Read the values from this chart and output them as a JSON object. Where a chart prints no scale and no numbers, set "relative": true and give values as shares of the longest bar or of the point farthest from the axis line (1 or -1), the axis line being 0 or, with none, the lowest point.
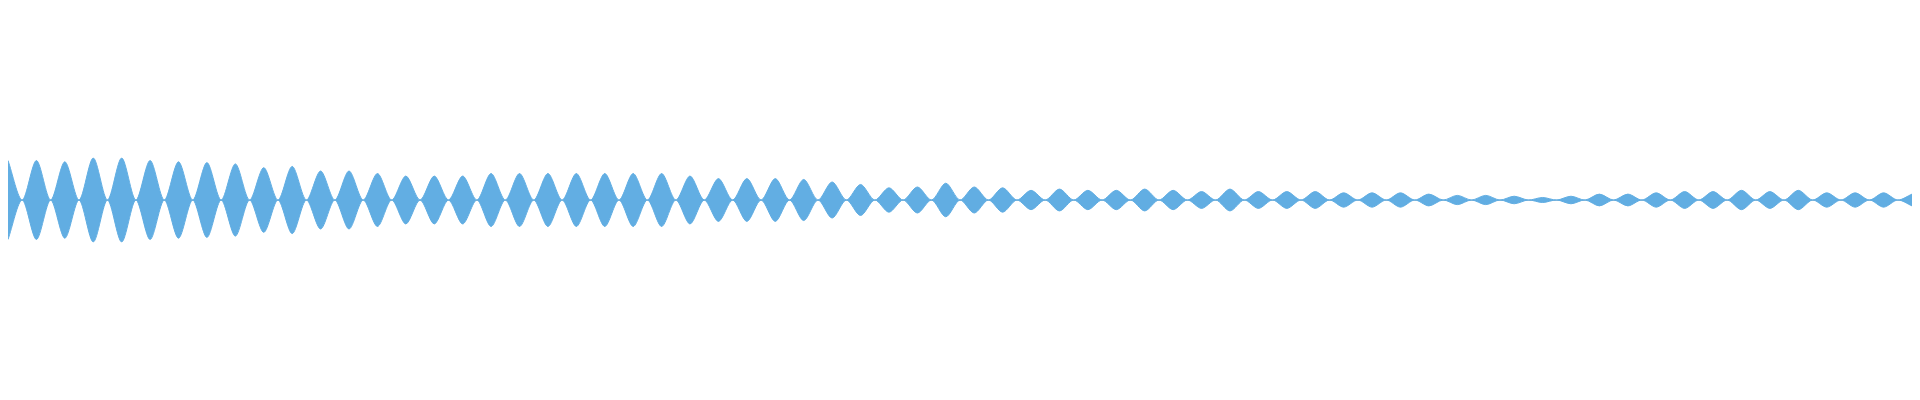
{
  "chart_data": {
    "type": "area",
    "relative": true,
    "categories": [
      null,
      null,
      null,
      null,
      null,
      null,
      null,
      null,
      null,
      null,
      null,
      null,
      null,
      null,
      null,
      null,
      null,
      null,
      null,
      null,
      null,
      null,
      null,
      null,
      null,
      null,
      null,
      null,
      null,
      null,
      null,
      null,
      null,
      null,
      null,
      null,
      null,
      null,
      null,
      null,
      null,
      null,
      null,
      null,
      null,
      null,
      null,
      null,
      null,
      null,
      null,
      null,
      null,
      null,
      null,
      null,
      null,
      null,
      null,
      null,
      null,
      null,
      null,
      null,
      null,
      null,
      null,
      null,
      null,
      null,
      null,
      null,
      null,
      null,
      null,
      null,
      null,
      null,
      null,
      null,
      null,
      null,
      null,
      null,
      null,
      null,
      null,
      null,
      null,
      null,
      null,
      null,
      null,
      null,
      null,
      null,
      null,
      null,
      null,
      null,
      null,
      null,
      null,
      null,
      null,
      null,
      null,
      null,
      null,
      null,
      null,
      null,
      null,
      null,
      null,
      null,
      null,
      null,
      null,
      null,
      null,
      null,
      null,
      null,
      null,
      null,
      null,
      null,
      null,
      null,
      null,
      null,
      null,
      null,
      null
    ],
    "series": [
      {
        "type": "area",
        "color": "#62aee3",
        "values": [
          0.94,
          0,
          0.94,
          0,
          0.91,
          0,
          1,
          0,
          1,
          0,
          0.94,
          0,
          0.91,
          0,
          0.89,
          0,
          0.86,
          0,
          0.77,
          0,
          0.8,
          0,
          0.69,
          0,
          0.69,
          0,
          0.63,
          0,
          0.57,
          0,
          0.57,
          0,
          0.57,
          0,
          0.63,
          0,
          0.63,
          0,
          0.63,
          0,
          0.63,
          0,
          0.63,
          0,
          0.63,
          0,
          0.63,
          0,
          0.57,
          0,
          0.51,
          0,
          0.51,
          0,
          0.51,
          0,
          0.49,
          0,
          0.43,
          0,
          0.37,
          0,
          0.29,
          0,
          0.31,
          0,
          0.4,
          0,
          0.31,
          0,
          0.29,
          0,
          0.23,
          0,
          0.26,
          0,
          0.23,
          0,
          0.23,
          0,
          0.26,
          0,
          0.23,
          0,
          0.2,
          0,
          0.26,
          0,
          0.2,
          0,
          0.2,
          0,
          0.2,
          0,
          0.17,
          0,
          0.17,
          0,
          0.17,
          0,
          0.14,
          0,
          0.11,
          0,
          0.11,
          0,
          0.09,
          0,
          0.06,
          0,
          0.09,
          0,
          0.14,
          0,
          0.14,
          0,
          0.17,
          0,
          0.2,
          0,
          0.2,
          0,
          0.23,
          0,
          0.2,
          0,
          0.23,
          0,
          0.17,
          0,
          0.17,
          0,
          0.17,
          0,
          0.14
        ]
      },
      {
        "type": "area",
        "color": "#61ade2",
        "values": [
          -0.94,
          0,
          -0.94,
          0,
          -0.91,
          0,
          -1,
          0,
          -1,
          0,
          -0.94,
          0,
          -0.91,
          0,
          -0.89,
          0,
          -0.86,
          0,
          -0.77,
          0,
          -0.8,
          0,
          -0.69,
          0,
          -0.69,
          0,
          -0.63,
          0,
          -0.57,
          0,
          -0.57,
          0,
          -0.57,
          0,
          -0.63,
          0,
          -0.63,
          0,
          -0.63,
          0,
          -0.63,
          0,
          -0.63,
          0,
          -0.63,
          0,
          -0.63,
          0,
          -0.57,
          0,
          -0.51,
          0,
          -0.51,
          0,
          -0.51,
          0,
          -0.49,
          0,
          -0.43,
          0,
          -0.37,
          0,
          -0.29,
          0,
          -0.31,
          0,
          -0.4,
          0,
          -0.31,
          0,
          -0.29,
          0,
          -0.23,
          0,
          -0.26,
          0,
          -0.23,
          0,
          -0.23,
          0,
          -0.26,
          0,
          -0.23,
          0,
          -0.2,
          0,
          -0.26,
          0,
          -0.2,
          0,
          -0.2,
          0,
          -0.2,
          0,
          -0.17,
          0,
          -0.17,
          0,
          -0.17,
          0,
          -0.14,
          0,
          -0.11,
          0,
          -0.11,
          0,
          -0.09,
          0,
          -0.06,
          0,
          -0.09,
          0,
          -0.14,
          0,
          -0.14,
          0,
          -0.17,
          0,
          -0.2,
          0,
          -0.2,
          0,
          -0.23,
          0,
          -0.2,
          0,
          -0.23,
          0,
          -0.17,
          0,
          -0.17,
          0,
          -0.17,
          0,
          -0.14
        ]
      }
    ]
  }
}
